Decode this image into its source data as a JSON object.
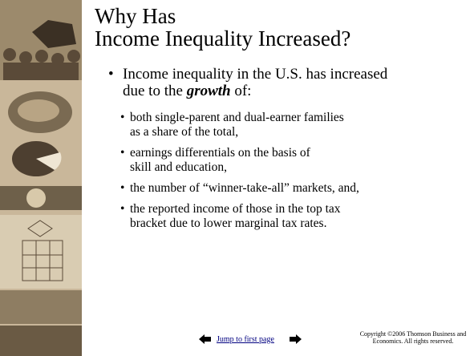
{
  "title": {
    "lines": [
      "Why Has",
      "Income Inequality Increased?"
    ]
  },
  "main_bullet": {
    "line1": "Income inequality in the U.S. has increased",
    "line2_start": "due to the",
    "emphasis": "growth",
    "line2_end": "of:"
  },
  "sub_bullets": [
    [
      "both single-parent and dual-earner families",
      "as a share of the total,"
    ],
    [
      "earnings differentials on the basis of",
      "skill and education,"
    ],
    [
      "the number of “winner-take-all” markets, and,"
    ],
    [
      "the reported income of those in the top tax",
      "bracket due to lower marginal tax rates."
    ]
  ],
  "footer": {
    "link": "Jump to first page",
    "copyright": [
      "Copyright ©2006  Thomson Business and",
      "Economics. All rights reserved."
    ]
  }
}
